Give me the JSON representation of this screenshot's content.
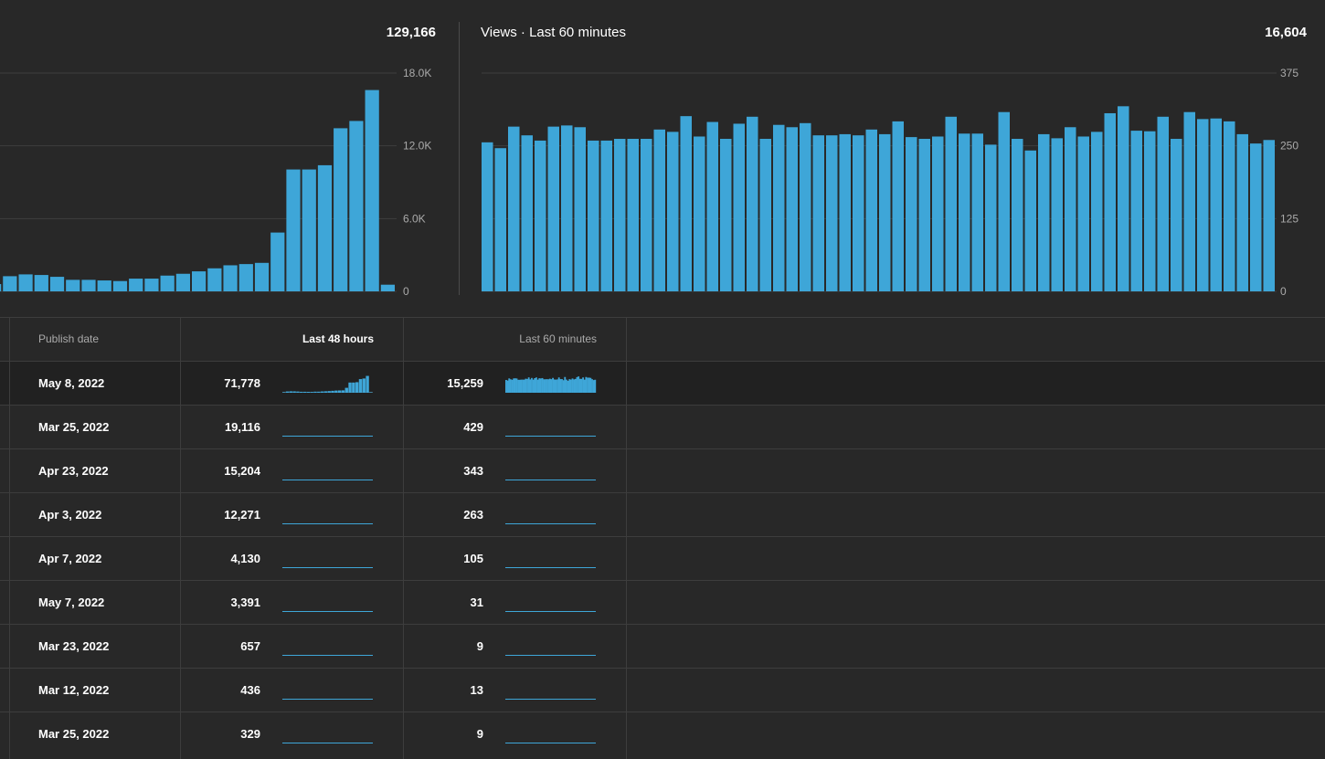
{
  "colors": {
    "background": "#282828",
    "bar": "#3ea6d8",
    "grid": "#3e3e3e",
    "muted_text": "#aaaaaa"
  },
  "panel_48h": {
    "title": "",
    "total": "129,166"
  },
  "panel_60m": {
    "title": "Views · Last 60 minutes",
    "total": "16,604"
  },
  "chart_data": [
    {
      "type": "bar",
      "title": "",
      "total": "129,166",
      "yticks": [
        "0",
        "6.0K",
        "12.0K",
        "18.0K"
      ],
      "ylim": [
        0,
        18000
      ],
      "grid": true,
      "values": [
        600,
        1250,
        1400,
        1350,
        1200,
        950,
        950,
        900,
        850,
        1050,
        1050,
        1300,
        1450,
        1650,
        1900,
        2150,
        2250,
        2350,
        4850,
        10050,
        10050,
        10400,
        13450,
        14050,
        16600,
        550
      ]
    },
    {
      "type": "bar",
      "title": "Views · Last 60 minutes",
      "total": "16,604",
      "yticks": [
        "0",
        "125",
        "250",
        "375"
      ],
      "ylim": [
        0,
        375
      ],
      "grid": true,
      "values": [
        256,
        246,
        283,
        268,
        259,
        283,
        285,
        282,
        259,
        259,
        262,
        262,
        262,
        278,
        274,
        301,
        266,
        291,
        262,
        288,
        300,
        262,
        286,
        282,
        289,
        268,
        268,
        270,
        268,
        278,
        270,
        292,
        265,
        262,
        266,
        300,
        271,
        271,
        252,
        308,
        262,
        242,
        270,
        263,
        282,
        266,
        274,
        306,
        318,
        276,
        275,
        300,
        262,
        308,
        296,
        297,
        292,
        270,
        254,
        260
      ]
    }
  ],
  "table": {
    "headers": {
      "publish_date": "Publish date",
      "last_48": "Last 48 hours",
      "last_60": "Last 60 minutes"
    },
    "rows": [
      {
        "date": "May 8, 2022",
        "v48": "71,778",
        "v60": "15,259"
      },
      {
        "date": "Mar 25, 2022",
        "v48": "19,116",
        "v60": "429"
      },
      {
        "date": "Apr 23, 2022",
        "v48": "15,204",
        "v60": "343"
      },
      {
        "date": "Apr 3, 2022",
        "v48": "12,271",
        "v60": "263"
      },
      {
        "date": "Apr 7, 2022",
        "v48": "4,130",
        "v60": "105"
      },
      {
        "date": "May 7, 2022",
        "v48": "3,391",
        "v60": "31"
      },
      {
        "date": "Mar 23, 2022",
        "v48": "657",
        "v60": "9"
      },
      {
        "date": "Mar 12, 2022",
        "v48": "436",
        "v60": "13"
      },
      {
        "date": "Mar 25, 2022",
        "v48": "329",
        "v60": "9"
      }
    ]
  }
}
